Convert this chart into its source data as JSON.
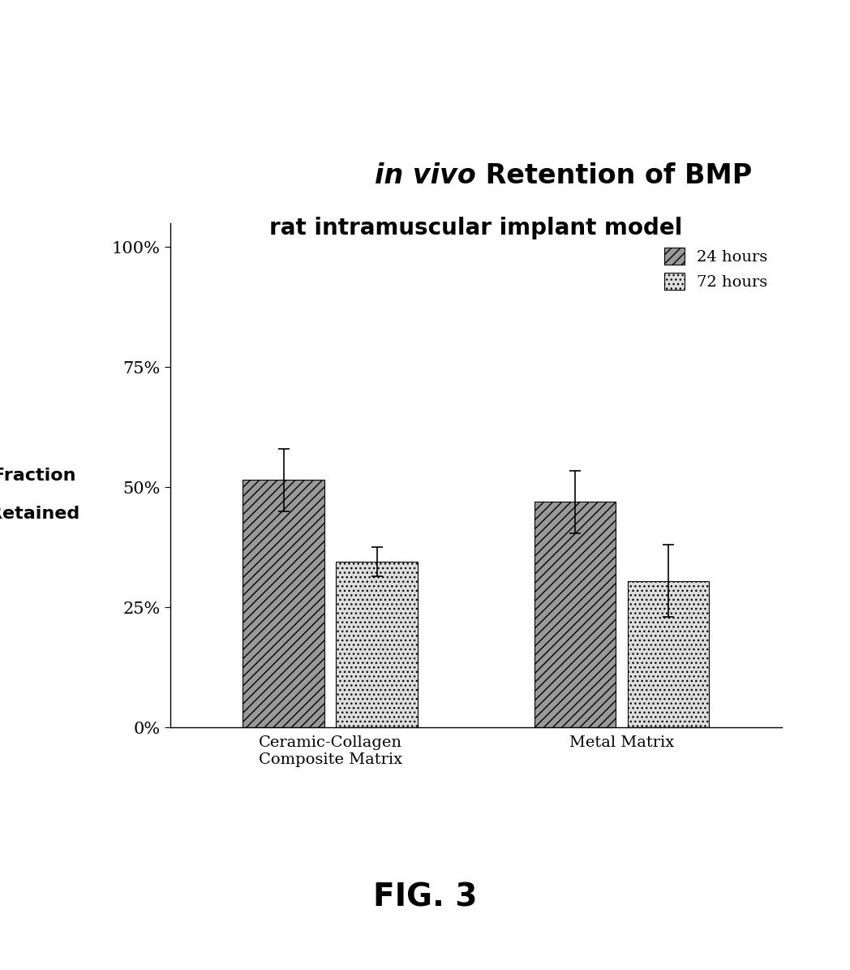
{
  "title_italic": "in vivo",
  "title_rest": " Retention of BMP",
  "title_line2": "rat intramuscular implant model",
  "ylabel_line1": "Fraction",
  "ylabel_line2": "Retained",
  "categories": [
    "Ceramic-Collagen\nComposite Matrix",
    "Metal Matrix"
  ],
  "values_24h": [
    0.515,
    0.47
  ],
  "values_72h": [
    0.345,
    0.305
  ],
  "errors_24h": [
    0.065,
    0.065
  ],
  "errors_72h": [
    0.03,
    0.075
  ],
  "hatch_24h": "///",
  "hatch_72h": "...",
  "color_24h": "#999999",
  "color_72h": "#dddddd",
  "legend_labels": [
    "24 hours",
    "72 hours"
  ],
  "yticks": [
    0,
    0.25,
    0.5,
    0.75,
    1.0
  ],
  "ytick_labels": [
    "0%",
    "25%",
    "50%",
    "75%",
    "100%"
  ],
  "ylim": [
    0,
    1.05
  ],
  "fig_caption": "FIG. 3",
  "background_color": "#ffffff"
}
